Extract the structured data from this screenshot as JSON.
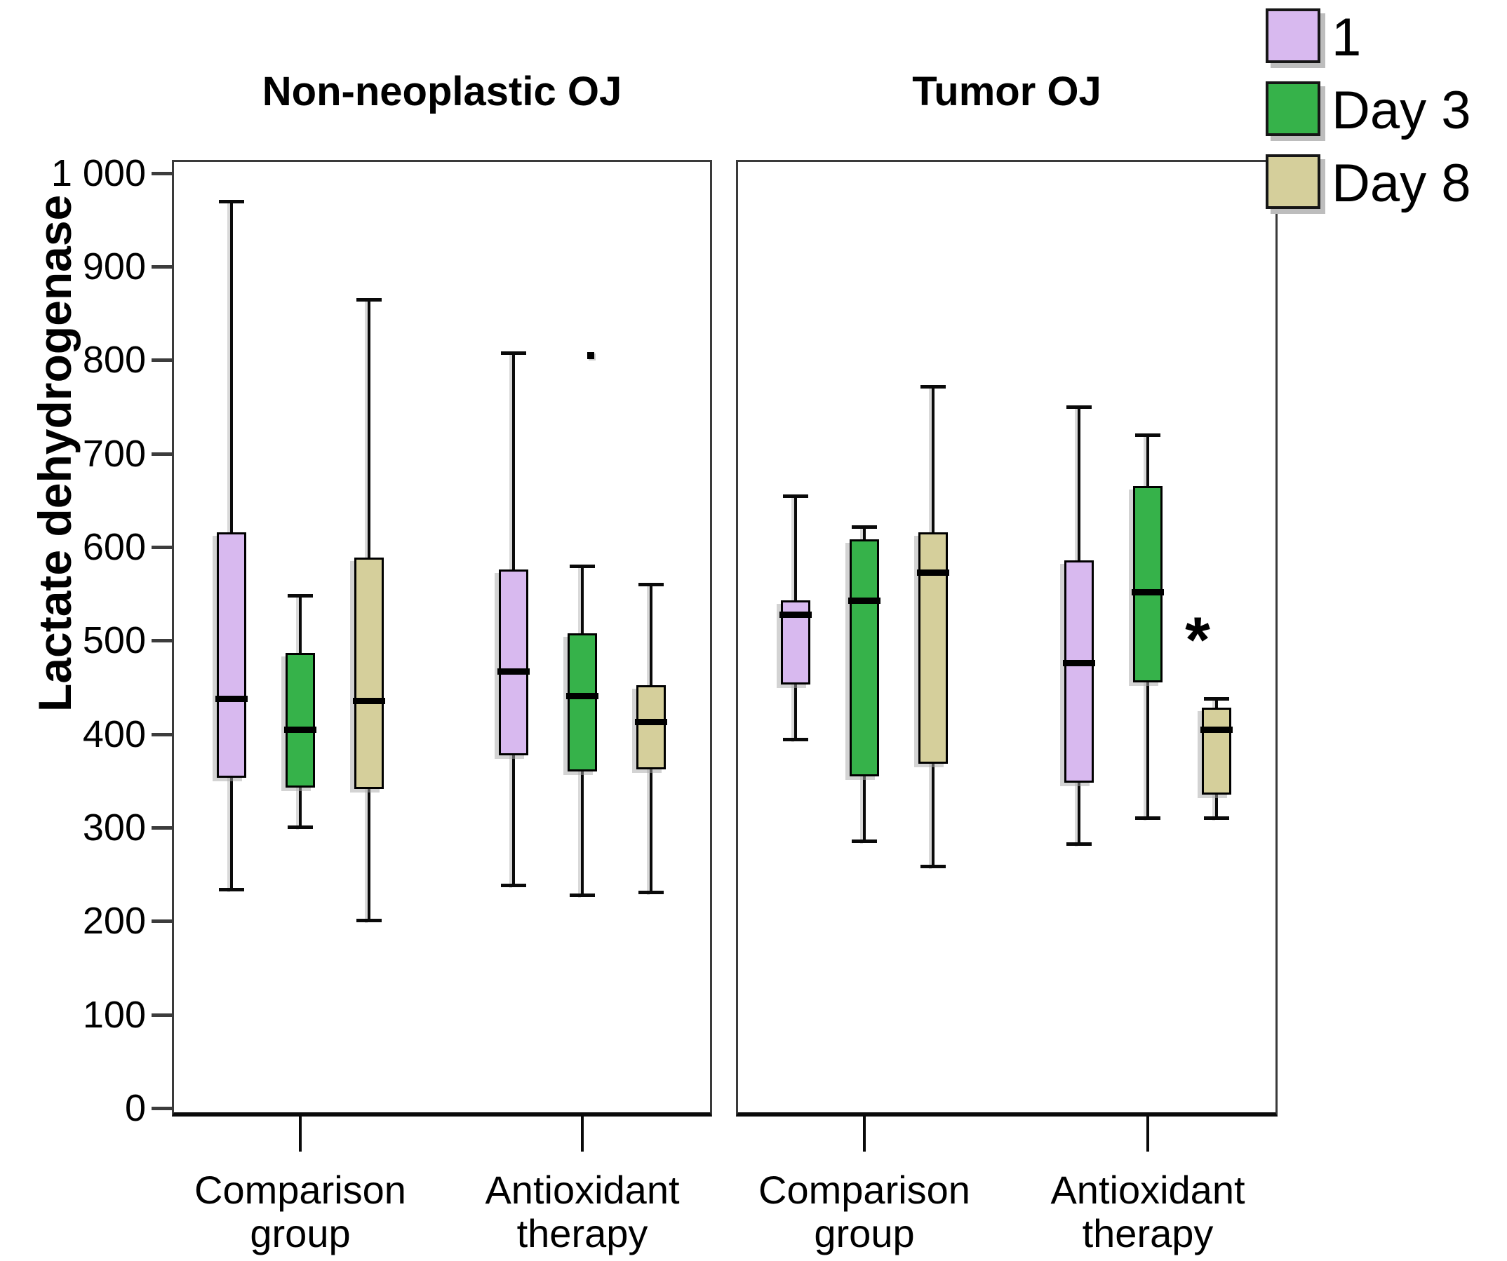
{
  "chart_data": {
    "type": "boxplot",
    "ylabel": "Lactate dehydrogenase",
    "ylim": [
      0,
      1000
    ],
    "ytick_step": 100,
    "ytick_labels": [
      "0",
      "100",
      "200",
      "300",
      "400",
      "500",
      "600",
      "700",
      "800",
      "900",
      "1 000"
    ],
    "legend_position": "top-right",
    "grid": false,
    "series_legend": [
      "1",
      "Day 3",
      "Day 8"
    ],
    "colors": {
      "1": "#d8b9ef",
      "Day 3": "#36b24a",
      "Day 8": "#d5cf9b"
    },
    "panels": [
      {
        "title": "Non-neoplastic OJ",
        "groups": [
          {
            "label_lines": [
              "Comparison",
              "group"
            ],
            "boxes": [
              {
                "series": "1",
                "whisker_low": 233,
                "q1": 353,
                "median": 438,
                "q3": 616,
                "whisker_high": 970
              },
              {
                "series": "Day 3",
                "whisker_low": 300,
                "q1": 343,
                "median": 405,
                "q3": 487,
                "whisker_high": 548
              },
              {
                "series": "Day 8",
                "whisker_low": 200,
                "q1": 341,
                "median": 436,
                "q3": 589,
                "whisker_high": 865
              }
            ]
          },
          {
            "label_lines": [
              "Antioxidant",
              "therapy"
            ],
            "boxes": [
              {
                "series": "1",
                "whisker_low": 238,
                "q1": 377,
                "median": 467,
                "q3": 576,
                "whisker_high": 808
              },
              {
                "series": "Day 3",
                "whisker_low": 227,
                "q1": 360,
                "median": 441,
                "q3": 508,
                "whisker_high": 580,
                "outlier": {
                  "value": 805,
                  "x_offset": 12
                }
              },
              {
                "series": "Day 8",
                "whisker_low": 230,
                "q1": 362,
                "median": 413,
                "q3": 452,
                "whisker_high": 560
              }
            ]
          }
        ]
      },
      {
        "title": "Tumor OJ",
        "groups": [
          {
            "label_lines": [
              "Comparison",
              "group"
            ],
            "boxes": [
              {
                "series": "1",
                "whisker_low": 394,
                "q1": 453,
                "median": 528,
                "q3": 543,
                "whisker_high": 655
              },
              {
                "series": "Day 3",
                "whisker_low": 285,
                "q1": 355,
                "median": 543,
                "q3": 608,
                "whisker_high": 622
              },
              {
                "series": "Day 8",
                "whisker_low": 258,
                "q1": 368,
                "median": 573,
                "q3": 616,
                "whisker_high": 772
              }
            ]
          },
          {
            "label_lines": [
              "Antioxidant",
              "therapy"
            ],
            "boxes": [
              {
                "series": "1",
                "whisker_low": 282,
                "q1": 348,
                "median": 476,
                "q3": 586,
                "whisker_high": 750
              },
              {
                "series": "Day 3",
                "whisker_low": 310,
                "q1": 455,
                "median": 552,
                "q3": 665,
                "whisker_high": 720
              },
              {
                "series": "Day 8",
                "whisker_low": 310,
                "q1": 335,
                "median": 405,
                "q3": 428,
                "whisker_high": 438,
                "annotation": {
                  "text": "*",
                  "value": 505,
                  "x_offset": -27
                }
              }
            ]
          }
        ]
      }
    ]
  }
}
